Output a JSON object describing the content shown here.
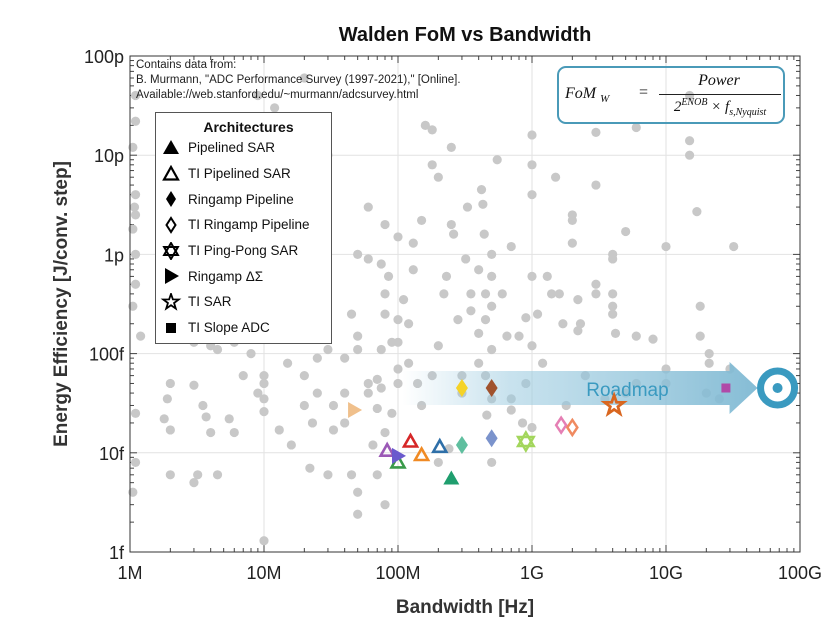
{
  "chart_data": {
    "type": "scatter",
    "title": "Walden FoM vs Bandwidth",
    "xlabel": "Bandwidth [Hz]",
    "ylabel": "Energy Efficiency [J/conv. step]",
    "xscale": "log",
    "yscale": "log",
    "xlim": [
      1000000.0,
      100000000000.0
    ],
    "ylim": [
      1e-15,
      1e-10
    ],
    "grid": true,
    "x_ticks": [
      "1M",
      "10M",
      "100M",
      "1G",
      "10G",
      "100G"
    ],
    "y_ticks": [
      "100p",
      "10p",
      "1p",
      "100f",
      "10f",
      "1f"
    ],
    "note": [
      "Contains data from:",
      "B. Murmann, \"ADC Performance Survey (1997-2021),\" [Online].",
      "Available://web.stanford.edu/~murmann/adcsurvey.html"
    ],
    "background_color": "#c8c8c8",
    "background_points": [
      [
        1100000.0,
        4e-11
      ],
      [
        1100000.0,
        2.2e-11
      ],
      [
        1050000.0,
        1.2e-11
      ],
      [
        1100000.0,
        4e-12
      ],
      [
        1080000.0,
        3e-12
      ],
      [
        1100000.0,
        2.5e-12
      ],
      [
        1050000.0,
        1.8e-12
      ],
      [
        1100000.0,
        1e-12
      ],
      [
        1100000.0,
        5e-13
      ],
      [
        1050000.0,
        3e-13
      ],
      [
        1200000.0,
        1.5e-13
      ],
      [
        1100000.0,
        8e-15
      ],
      [
        1050000.0,
        4e-15
      ],
      [
        1100000.0,
        2.5e-14
      ],
      [
        1700000.0,
        1e-11
      ],
      [
        1800000.0,
        7e-12
      ],
      [
        1900000.0,
        4e-12
      ],
      [
        1700000.0,
        2e-12
      ],
      [
        1900000.0,
        8e-13
      ],
      [
        1800000.0,
        3e-13
      ],
      [
        2000000.0,
        5e-14
      ],
      [
        1900000.0,
        3.5e-14
      ],
      [
        2000000.0,
        1.7e-14
      ],
      [
        2000000.0,
        6e-15
      ],
      [
        1800000.0,
        2.2e-14
      ],
      [
        3500000.0,
        3e-14
      ],
      [
        3000000.0,
        4.8e-14
      ],
      [
        3700000.0,
        2.3e-14
      ],
      [
        4000000.0,
        1.6e-14
      ],
      [
        3200000.0,
        6e-15
      ],
      [
        3000000.0,
        5e-15
      ],
      [
        4500000.0,
        6e-15
      ],
      [
        4000000.0,
        1.2e-13
      ],
      [
        4500000.0,
        1.1e-13
      ],
      [
        3000000.0,
        1.3e-13
      ],
      [
        5500000.0,
        2.2e-14
      ],
      [
        6000000.0,
        1.6e-14
      ],
      [
        6000000.0,
        1.3e-13
      ],
      [
        7000000.0,
        6e-14
      ],
      [
        8000000.0,
        1e-13
      ],
      [
        9000000.0,
        4e-14
      ],
      [
        10000000.0,
        6e-14
      ],
      [
        10000000.0,
        5e-14
      ],
      [
        10000000.0,
        3.5e-14
      ],
      [
        10000000.0,
        2.6e-14
      ],
      [
        10000000.0,
        1.3e-15
      ],
      [
        9000000.0,
        4e-11
      ],
      [
        10000000.0,
        2e-11
      ],
      [
        8000000.0,
        1.6e-11
      ],
      [
        13000000.0,
        1.7e-14
      ],
      [
        15000000.0,
        8e-14
      ],
      [
        16000000.0,
        1.2e-14
      ],
      [
        20000000.0,
        6e-14
      ],
      [
        20000000.0,
        3e-14
      ],
      [
        22000000.0,
        7e-15
      ],
      [
        25000000.0,
        4e-14
      ],
      [
        25000000.0,
        9e-14
      ],
      [
        30000000.0,
        1.1e-13
      ],
      [
        30000000.0,
        6e-15
      ],
      [
        23000000.0,
        2e-14
      ],
      [
        33000000.0,
        3e-14
      ],
      [
        33000000.0,
        1.7e-14
      ],
      [
        12000000.0,
        3e-11
      ],
      [
        20000000.0,
        6e-11
      ],
      [
        30000000.0,
        1e-11
      ],
      [
        40000000.0,
        9e-14
      ],
      [
        40000000.0,
        4e-14
      ],
      [
        40000000.0,
        2e-14
      ],
      [
        45000000.0,
        6e-15
      ],
      [
        50000000.0,
        4e-15
      ],
      [
        50000000.0,
        2.4e-15
      ],
      [
        50000000.0,
        1.5e-13
      ],
      [
        50000000.0,
        1.1e-13
      ],
      [
        45000000.0,
        2.5e-13
      ],
      [
        50000000.0,
        1e-12
      ],
      [
        60000000.0,
        3e-12
      ],
      [
        60000000.0,
        9e-13
      ],
      [
        60000000.0,
        5e-14
      ],
      [
        65000000.0,
        1.2e-14
      ],
      [
        70000000.0,
        5.5e-14
      ],
      [
        70000000.0,
        2.8e-14
      ],
      [
        75000000.0,
        8e-13
      ],
      [
        75000000.0,
        1.1e-13
      ],
      [
        75000000.0,
        4.5e-14
      ],
      [
        80000000.0,
        1.6e-14
      ],
      [
        80000000.0,
        2e-12
      ],
      [
        80000000.0,
        4e-13
      ],
      [
        80000000.0,
        2.5e-13
      ],
      [
        85000000.0,
        6e-13
      ],
      [
        90000000.0,
        1.3e-13
      ],
      [
        90000000.0,
        2.5e-14
      ],
      [
        60000000.0,
        4e-14
      ],
      [
        70000000.0,
        6e-15
      ],
      [
        80000000.0,
        3e-15
      ],
      [
        100000000.0,
        2.2e-13
      ],
      [
        100000000.0,
        1.3e-13
      ],
      [
        100000000.0,
        1.5e-12
      ],
      [
        100000000.0,
        7e-14
      ],
      [
        100000000.0,
        5e-14
      ],
      [
        110000000.0,
        3.5e-13
      ],
      [
        120000000.0,
        2e-13
      ],
      [
        120000000.0,
        8e-14
      ],
      [
        130000000.0,
        1.3e-12
      ],
      [
        130000000.0,
        7e-13
      ],
      [
        140000000.0,
        5e-14
      ],
      [
        160000000.0,
        2e-11
      ],
      [
        180000000.0,
        8e-12
      ],
      [
        180000000.0,
        1.8e-11
      ],
      [
        150000000.0,
        2.2e-12
      ],
      [
        200000000.0,
        6e-12
      ],
      [
        220000000.0,
        4e-13
      ],
      [
        230000000.0,
        6e-13
      ],
      [
        250000000.0,
        1.2e-11
      ],
      [
        250000000.0,
        2e-12
      ],
      [
        260000000.0,
        1.6e-12
      ],
      [
        280000000.0,
        2.2e-13
      ],
      [
        200000000.0,
        1.2e-13
      ],
      [
        240000000.0,
        1.1e-14
      ],
      [
        300000000.0,
        6e-14
      ],
      [
        300000000.0,
        4e-14
      ],
      [
        150000000.0,
        3e-14
      ],
      [
        180000000.0,
        6e-14
      ],
      [
        200000000.0,
        8e-15
      ],
      [
        320000000.0,
        9e-13
      ],
      [
        330000000.0,
        3e-12
      ],
      [
        350000000.0,
        4e-13
      ],
      [
        350000000.0,
        2.7e-13
      ],
      [
        400000000.0,
        7e-13
      ],
      [
        400000000.0,
        1.6e-13
      ],
      [
        400000000.0,
        8e-14
      ],
      [
        420000000.0,
        4.5e-12
      ],
      [
        430000000.0,
        3.2e-12
      ],
      [
        440000000.0,
        1.6e-12
      ],
      [
        450000000.0,
        4e-13
      ],
      [
        450000000.0,
        2.2e-13
      ],
      [
        450000000.0,
        6e-14
      ],
      [
        460000000.0,
        2.4e-14
      ],
      [
        500000000.0,
        1e-12
      ],
      [
        500000000.0,
        6e-13
      ],
      [
        500000000.0,
        3e-13
      ],
      [
        500000000.0,
        1.1e-13
      ],
      [
        500000000.0,
        3.5e-14
      ],
      [
        500000000.0,
        8e-15
      ],
      [
        550000000.0,
        9e-12
      ],
      [
        600000000.0,
        4e-13
      ],
      [
        650000000.0,
        1.5e-13
      ],
      [
        700000000.0,
        1.2e-12
      ],
      [
        700000000.0,
        2.7e-14
      ],
      [
        700000000.0,
        3.5e-14
      ],
      [
        800000000.0,
        1.5e-13
      ],
      [
        850000000.0,
        2e-14
      ],
      [
        900000000.0,
        2.3e-13
      ],
      [
        900000000.0,
        5e-14
      ],
      [
        1000000000.0,
        1.6e-11
      ],
      [
        1000000000.0,
        8e-12
      ],
      [
        1000000000.0,
        4e-12
      ],
      [
        1000000000.0,
        6e-13
      ],
      [
        1000000000.0,
        1.2e-13
      ],
      [
        1000000000.0,
        1.8e-14
      ],
      [
        1100000000.0,
        2.5e-13
      ],
      [
        1200000000.0,
        8e-14
      ],
      [
        1300000000.0,
        6e-13
      ],
      [
        1400000000.0,
        4e-13
      ],
      [
        1500000000.0,
        6e-12
      ],
      [
        1600000000.0,
        4e-13
      ],
      [
        1700000000.0,
        2e-13
      ],
      [
        1800000000.0,
        3e-14
      ],
      [
        2000000000.0,
        2.5e-12
      ],
      [
        2000000000.0,
        2.2e-12
      ],
      [
        2000000000.0,
        1.3e-12
      ],
      [
        2200000000.0,
        3.5e-13
      ],
      [
        2200000000.0,
        1.7e-13
      ],
      [
        2300000000.0,
        2e-13
      ],
      [
        2500000000.0,
        6e-14
      ],
      [
        3000000000.0,
        1.7e-11
      ],
      [
        3000000000.0,
        5e-12
      ],
      [
        3000000000.0,
        5e-13
      ],
      [
        3000000000.0,
        4e-13
      ],
      [
        3500000000.0,
        3.5e-14
      ],
      [
        4000000000.0,
        1e-12
      ],
      [
        4000000000.0,
        9e-13
      ],
      [
        4000000000.0,
        4e-13
      ],
      [
        4000000000.0,
        3e-13
      ],
      [
        4000000000.0,
        2.5e-13
      ],
      [
        4200000000.0,
        1.6e-13
      ],
      [
        5000000000.0,
        1.7e-12
      ],
      [
        5000000000.0,
        4e-14
      ],
      [
        6000000000.0,
        1.9e-11
      ],
      [
        6000000000.0,
        1.5e-13
      ],
      [
        6000000000.0,
        5e-14
      ],
      [
        8000000000.0,
        1.4e-13
      ],
      [
        10000000000.0,
        5e-14
      ],
      [
        10000000000.0,
        7e-14
      ],
      [
        10000000000.0,
        1.2e-12
      ],
      [
        15000000000.0,
        1.4e-11
      ],
      [
        15000000000.0,
        4e-11
      ],
      [
        15000000000.0,
        1e-11
      ],
      [
        17000000000.0,
        2.7e-12
      ],
      [
        18000000000.0,
        3e-13
      ],
      [
        18000000000.0,
        1.5e-13
      ],
      [
        21000000000.0,
        1e-13
      ],
      [
        21000000000.0,
        8e-14
      ],
      [
        20000000000.0,
        4e-14
      ],
      [
        25000000000.0,
        3.5e-14
      ],
      [
        32000000000.0,
        1.2e-12
      ],
      [
        30000000000.0,
        7e-14
      ]
    ],
    "legend": {
      "title": "Architectures",
      "placement": "upper-left",
      "items": [
        {
          "label": "Pipelined SAR",
          "shape": "triangle-filled"
        },
        {
          "label": "TI Pipelined SAR",
          "shape": "triangle-open"
        },
        {
          "label": "Ringamp Pipeline",
          "shape": "diamond-filled"
        },
        {
          "label": "TI Ringamp Pipeline",
          "shape": "diamond-open"
        },
        {
          "label": "TI Ping-Pong SAR",
          "shape": "hexagram"
        },
        {
          "label": "Ringamp ΔΣ",
          "shape": "right-triangle"
        },
        {
          "label": "TI SAR",
          "shape": "star"
        },
        {
          "label": "TI Slope ADC",
          "shape": "square"
        }
      ]
    },
    "highlighted_points": [
      {
        "architecture": "Ringamp ΔΣ",
        "shape": "right-triangle",
        "x": 47000000.0,
        "y": 2.7e-14,
        "color": "#f0c08c"
      },
      {
        "architecture": "TI Pipelined SAR",
        "shape": "triangle-open",
        "x": 83000000.0,
        "y": 1.05e-14,
        "color": "#9b59b6"
      },
      {
        "architecture": "TI Pipelined SAR",
        "shape": "triangle-open",
        "x": 100000000.0,
        "y": 8e-15,
        "color": "#3a9a4a"
      },
      {
        "architecture": "Ringamp ΔΣ",
        "shape": "right-triangle",
        "x": 100000000.0,
        "y": 9.3e-15,
        "color": "#6a5acd"
      },
      {
        "architecture": "TI Pipelined SAR",
        "shape": "triangle-open",
        "x": 124000000.0,
        "y": 1.3e-14,
        "color": "#d62728"
      },
      {
        "architecture": "TI Pipelined SAR",
        "shape": "triangle-open",
        "x": 150000000.0,
        "y": 9.5e-15,
        "color": "#f08a24"
      },
      {
        "architecture": "TI Pipelined SAR",
        "shape": "triangle-open",
        "x": 205000000.0,
        "y": 1.15e-14,
        "color": "#2e6fa8"
      },
      {
        "architecture": "Pipelined SAR",
        "shape": "triangle-filled",
        "x": 250000000.0,
        "y": 5.5e-15,
        "color": "#1f9e6e"
      },
      {
        "architecture": "Ringamp Pipeline",
        "shape": "diamond-filled",
        "x": 300000000.0,
        "y": 1.2e-14,
        "color": "#5fbf9f"
      },
      {
        "architecture": "Ringamp Pipeline",
        "shape": "diamond-filled",
        "x": 300000000.0,
        "y": 4.5e-14,
        "color": "#f5d327"
      },
      {
        "architecture": "Ringamp Pipeline",
        "shape": "diamond-filled",
        "x": 500000000.0,
        "y": 4.5e-14,
        "color": "#a0522d"
      },
      {
        "architecture": "Ringamp Pipeline",
        "shape": "diamond-filled",
        "x": 500000000.0,
        "y": 1.4e-14,
        "color": "#7b93cc"
      },
      {
        "architecture": "TI Ping-Pong SAR",
        "shape": "hexagram",
        "x": 900000000.0,
        "y": 1.3e-14,
        "color": "#a3d65c"
      },
      {
        "architecture": "TI Ringamp Pipeline",
        "shape": "diamond-open",
        "x": 1650000000.0,
        "y": 1.9e-14,
        "color": "#e57fb4"
      },
      {
        "architecture": "TI Ringamp Pipeline",
        "shape": "diamond-open",
        "x": 2000000000.0,
        "y": 1.8e-14,
        "color": "#f08a60"
      },
      {
        "architecture": "TI SAR",
        "shape": "star",
        "x": 4100000000.0,
        "y": 3e-14,
        "color": "#d9661f"
      },
      {
        "architecture": "TI Slope ADC",
        "shape": "square",
        "x": 28000000000.0,
        "y": 4.5e-14,
        "color": "#b04aa8"
      }
    ],
    "roadmap": {
      "label": "Roadmap",
      "from": [
        600000000.0,
        4.5e-14
      ],
      "to": [
        68000000000.0,
        4.5e-14
      ],
      "target": [
        68000000000.0,
        4.5e-14
      ],
      "color": "#3a9ac0"
    }
  },
  "formula": {
    "lhs": "FoM",
    "lhs_sub": "W",
    "eq": "=",
    "num": "Power",
    "den_base": "2",
    "den_sup": "ENOB",
    "den_times": " × f",
    "den_sub": "s,Nyquist"
  }
}
